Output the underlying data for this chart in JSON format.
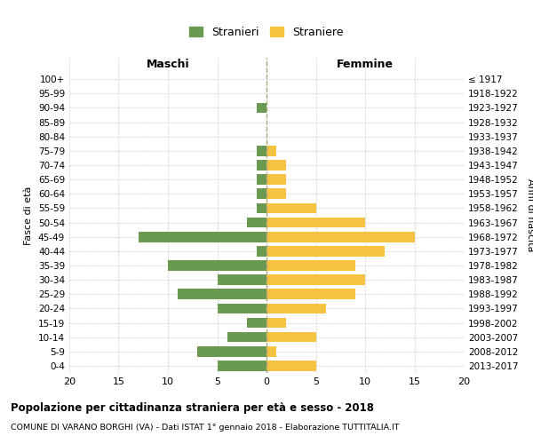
{
  "age_groups": [
    "100+",
    "95-99",
    "90-94",
    "85-89",
    "80-84",
    "75-79",
    "70-74",
    "65-69",
    "60-64",
    "55-59",
    "50-54",
    "45-49",
    "40-44",
    "35-39",
    "30-34",
    "25-29",
    "20-24",
    "15-19",
    "10-14",
    "5-9",
    "0-4"
  ],
  "birth_years": [
    "≤ 1917",
    "1918-1922",
    "1923-1927",
    "1928-1932",
    "1933-1937",
    "1938-1942",
    "1943-1947",
    "1948-1952",
    "1953-1957",
    "1958-1962",
    "1963-1967",
    "1968-1972",
    "1973-1977",
    "1978-1982",
    "1983-1987",
    "1988-1992",
    "1993-1997",
    "1998-2002",
    "2003-2007",
    "2008-2012",
    "2013-2017"
  ],
  "stranieri": [
    0,
    0,
    1,
    0,
    0,
    1,
    1,
    1,
    1,
    1,
    2,
    13,
    1,
    10,
    5,
    9,
    5,
    2,
    4,
    7,
    5
  ],
  "straniere": [
    0,
    0,
    0,
    0,
    0,
    1,
    2,
    2,
    2,
    5,
    10,
    15,
    12,
    9,
    10,
    9,
    6,
    2,
    5,
    1,
    5
  ],
  "color_stranieri": "#6a9a52",
  "color_straniere": "#f5c242",
  "background_color": "#ffffff",
  "grid_color": "#cccccc",
  "title": "Popolazione per cittadinanza straniera per età e sesso - 2018",
  "subtitle": "COMUNE DI VARANO BORGHI (VA) - Dati ISTAT 1° gennaio 2018 - Elaborazione TUTTITALIA.IT",
  "ylabel_left": "Fasce di età",
  "ylabel_right": "Anni di nascita",
  "xlabel_maschi": "Maschi",
  "xlabel_femmine": "Femmine",
  "legend_stranieri": "Stranieri",
  "legend_straniere": "Straniere",
  "xlim": 20
}
